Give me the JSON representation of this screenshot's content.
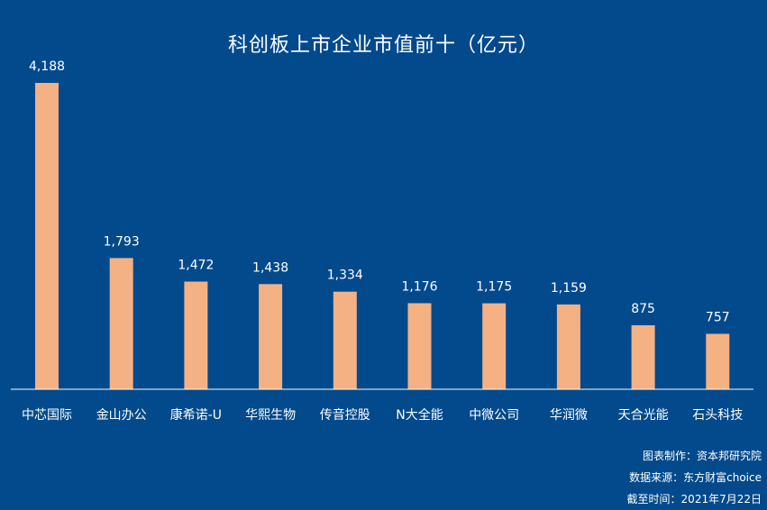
{
  "chart_data": {
    "type": "bar",
    "title": "科创板上市企业市值前十（亿元）",
    "categories": [
      "中芯国际",
      "金山办公",
      "康希诺-U",
      "华熙生物",
      "传音控股",
      "N大全能",
      "中微公司",
      "华润微",
      "天合光能",
      "石头科技"
    ],
    "values": [
      4188,
      1793,
      1472,
      1438,
      1334,
      1176,
      1175,
      1159,
      875,
      757
    ],
    "value_labels": [
      "4,188",
      "1,793",
      "1,472",
      "1,438",
      "1,334",
      "1,176",
      "1,175",
      "1,159",
      "875",
      "757"
    ],
    "ylim": [
      0,
      4188
    ],
    "grid": false,
    "colors": {
      "bar": "#f4b183",
      "background": "#024a8c",
      "text": "#ffffff"
    }
  },
  "footer": {
    "maker": "图表制作：资本邦研究院",
    "source": "数据来源：东方财富choice",
    "date": "截至时间：2021年7月22日"
  }
}
